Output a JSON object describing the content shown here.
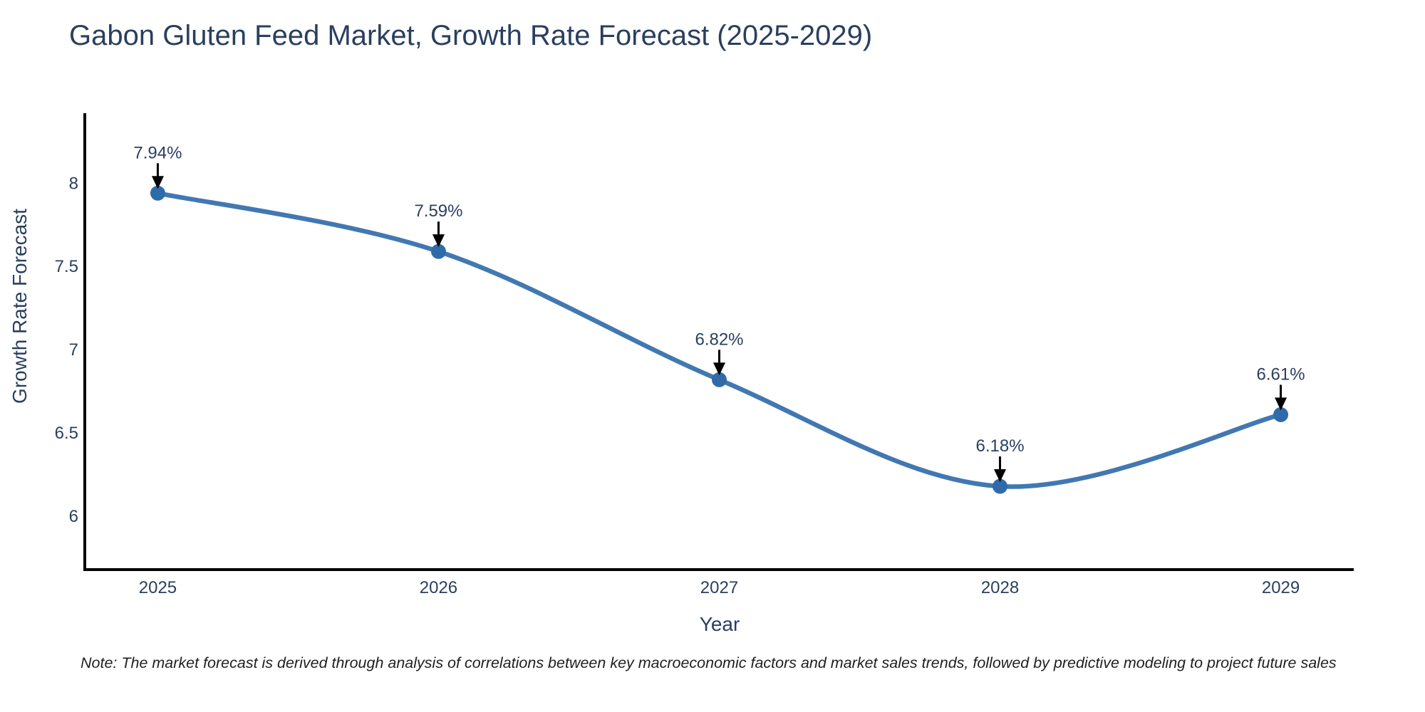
{
  "note": "Note: The market forecast is derived through analysis of correlations between key macroeconomic factors and market sales trends, followed by predictive modeling to project future sales",
  "chart_data": {
    "type": "line",
    "title": "Gabon Gluten Feed Market, Growth Rate Forecast (2025-2029)",
    "xlabel": "Year",
    "ylabel": "Growth Rate Forecast",
    "x": [
      2025,
      2026,
      2027,
      2028,
      2029
    ],
    "x_tick_labels": [
      "2025",
      "2026",
      "2027",
      "2028",
      "2029"
    ],
    "series": [
      {
        "name": "Growth Rate Forecast",
        "values": [
          7.94,
          7.59,
          6.82,
          6.18,
          6.61
        ]
      }
    ],
    "point_labels": [
      "7.94%",
      "7.59%",
      "6.82%",
      "6.18%",
      "6.61%"
    ],
    "y_ticks": [
      8,
      7.5,
      7,
      6.5,
      6
    ],
    "y_tick_labels": [
      "8",
      "7.5",
      "7",
      "6.5",
      "6"
    ],
    "xlim": [
      2024.74,
      2029.26
    ],
    "ylim": [
      5.68,
      8.42
    ],
    "line_shape": "spline",
    "grid": false,
    "legend": false,
    "annotations_have_arrows": true,
    "colors": {
      "line": "#4278b2",
      "marker": "#2f6ba8",
      "axis_line": "#000000",
      "text": "#2a3f5f",
      "annotation_text": "#2a3f5f",
      "annotation_arrow": "#000000",
      "note_text": "#1f1f1f",
      "background": "#ffffff"
    }
  }
}
